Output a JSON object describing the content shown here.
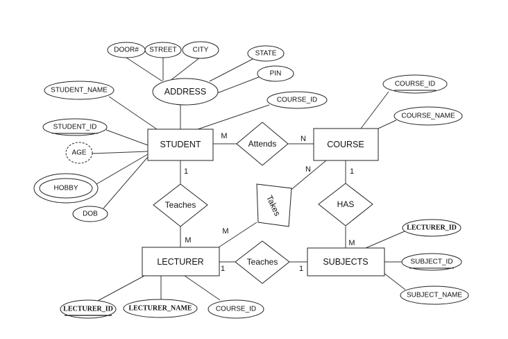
{
  "entities": {
    "student": "STUDENT",
    "course": "COURSE",
    "lecturer": "LECTURER",
    "subjects": "SUBJECTS"
  },
  "relationships": {
    "attends": "Attends",
    "teaches_student": "Teaches",
    "takes": "Takes",
    "has": "HAS",
    "teaches_subjects": "Teaches"
  },
  "attributes": {
    "door": "DOOR#",
    "street": "STREET",
    "city": "CITY",
    "state": "STATE",
    "pin": "PIN",
    "address": "ADDRESS",
    "student_name": "STUDENT_NAME",
    "student_course_id": "COURSE_ID",
    "student_id": "STUDENT_ID",
    "age": "AGE",
    "hobby": "HOBBY",
    "dob": "DOB",
    "course_id": "COURSE_ID",
    "course_name": "COURSE_NAME",
    "subject_lecturer_id": "LECTURER_ID",
    "subject_id": "SUBJECT_ID",
    "subject_name": "SUBJECT_NAME",
    "lecturer_id": "LECTURER_ID",
    "lecturer_name": "LECTURER_NAME",
    "lecturer_course_id": "COURSE_ID"
  },
  "cardinalities": {
    "student_attends": "M",
    "course_attends": "N",
    "student_teaches": "1",
    "lecturer_teaches": "M",
    "course_takes": "N",
    "lecturer_takes": "M",
    "course_has": "1",
    "subjects_has": "M",
    "lecturer_teaches_subjects": "1",
    "subjects_teaches": "1"
  }
}
